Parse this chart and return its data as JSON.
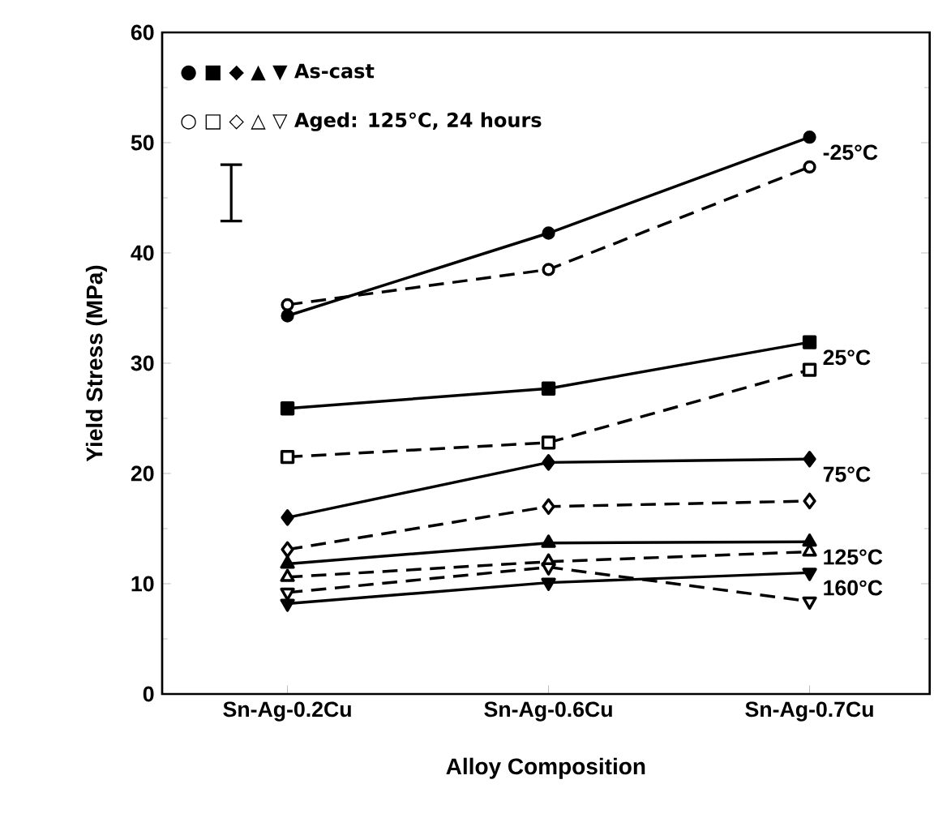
{
  "chart_data": {
    "type": "line",
    "xlabel": "Alloy Composition",
    "ylabel": "Yield Stress  (MPa)",
    "categories": [
      "Sn-Ag-0.2Cu",
      "Sn-Ag-0.6Cu",
      "Sn-Ag-0.7Cu"
    ],
    "ylim": [
      0,
      60
    ],
    "yticks": [
      0,
      10,
      20,
      30,
      40,
      50,
      60
    ],
    "grid": false,
    "series": [
      {
        "color": "#000000",
        "marker": "circle",
        "line_style": "solid",
        "values": [
          34.3,
          41.8,
          50.5
        ]
      },
      {
        "color": "#000000",
        "marker": "square",
        "line_style": "solid",
        "values": [
          25.9,
          27.7,
          31.9
        ]
      },
      {
        "color": "#000000",
        "marker": "diamond",
        "line_style": "solid",
        "values": [
          16.0,
          21.0,
          21.3
        ]
      },
      {
        "color": "#000000",
        "marker": "triangle",
        "line_style": "solid",
        "values": [
          11.8,
          13.7,
          13.8
        ]
      },
      {
        "color": "#000000",
        "marker": "triangle-down",
        "line_style": "solid",
        "values": [
          8.2,
          10.1,
          11.0
        ]
      },
      {
        "color": "#000000",
        "marker": "circle",
        "line_style": "dashed",
        "values": [
          35.3,
          38.5,
          47.8
        ]
      },
      {
        "color": "#000000",
        "marker": "square",
        "line_style": "dashed",
        "values": [
          21.5,
          22.8,
          29.4
        ]
      },
      {
        "color": "#000000",
        "marker": "diamond",
        "line_style": "dashed",
        "values": [
          13.1,
          17.0,
          17.5
        ]
      },
      {
        "color": "#000000",
        "marker": "triangle",
        "line_style": "dashed",
        "values": [
          10.6,
          12.0,
          12.9
        ]
      },
      {
        "color": "#000000",
        "marker": "triangle-down",
        "line_style": "dashed",
        "values": [
          9.2,
          11.5,
          8.4
        ]
      }
    ],
    "annotations": [
      "● ■ ◆ ▲ ▼ As-cast",
      "○ □ ◇ △ ▽ Aged: 125°C, 24 hours",
      {
        "text": "-25°C",
        "x": "Sn-Ag-0.7Cu",
        "y": 50.5
      },
      {
        "text": "25°C",
        "x": "Sn-Ag-0.7Cu",
        "y": 31.9
      },
      {
        "text": "75°C",
        "x": "Sn-Ag-0.7Cu",
        "y": 21.3
      },
      {
        "text": "125°C",
        "x": "Sn-Ag-0.7Cu",
        "y": 13.8
      },
      {
        "text": "160°C",
        "x": "Sn-Ag-0.7Cu",
        "y": 11.0
      }
    ]
  }
}
